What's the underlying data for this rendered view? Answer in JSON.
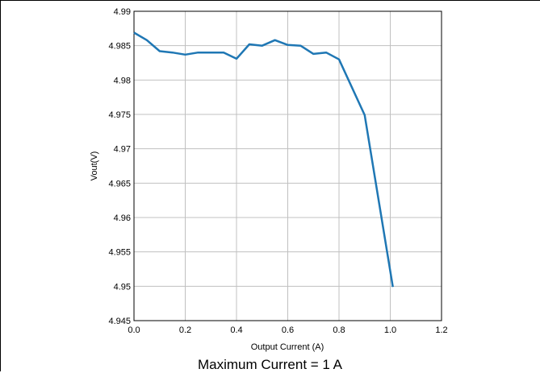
{
  "chart_data": {
    "type": "line",
    "title": "",
    "xlabel": "Output Current (A)",
    "ylabel": "Vout(V)",
    "xlim": [
      0,
      1.2
    ],
    "ylim": [
      4.945,
      4.99
    ],
    "xticks": [
      "0.0",
      "0.2",
      "0.4",
      "0.6",
      "0.8",
      "1.0",
      "1.2"
    ],
    "yticks": [
      "4.99",
      "4.985",
      "4.98",
      "4.975",
      "4.97",
      "4.965",
      "4.96",
      "4.955",
      "4.95",
      "4.945"
    ],
    "grid": true,
    "series": [
      {
        "color": "#1f77b4",
        "x": [
          0.0,
          0.05,
          0.1,
          0.15,
          0.2,
          0.25,
          0.3,
          0.35,
          0.4,
          0.45,
          0.5,
          0.55,
          0.6,
          0.65,
          0.7,
          0.75,
          0.8,
          0.9,
          1.01
        ],
        "y": [
          4.9869,
          4.9858,
          4.9842,
          4.984,
          4.9837,
          4.984,
          4.984,
          4.984,
          4.9831,
          4.9852,
          4.985,
          4.9858,
          4.9851,
          4.985,
          4.9838,
          4.984,
          4.983,
          4.9749,
          4.9499
        ]
      }
    ]
  },
  "caption": "Maximum Current = 1 A"
}
